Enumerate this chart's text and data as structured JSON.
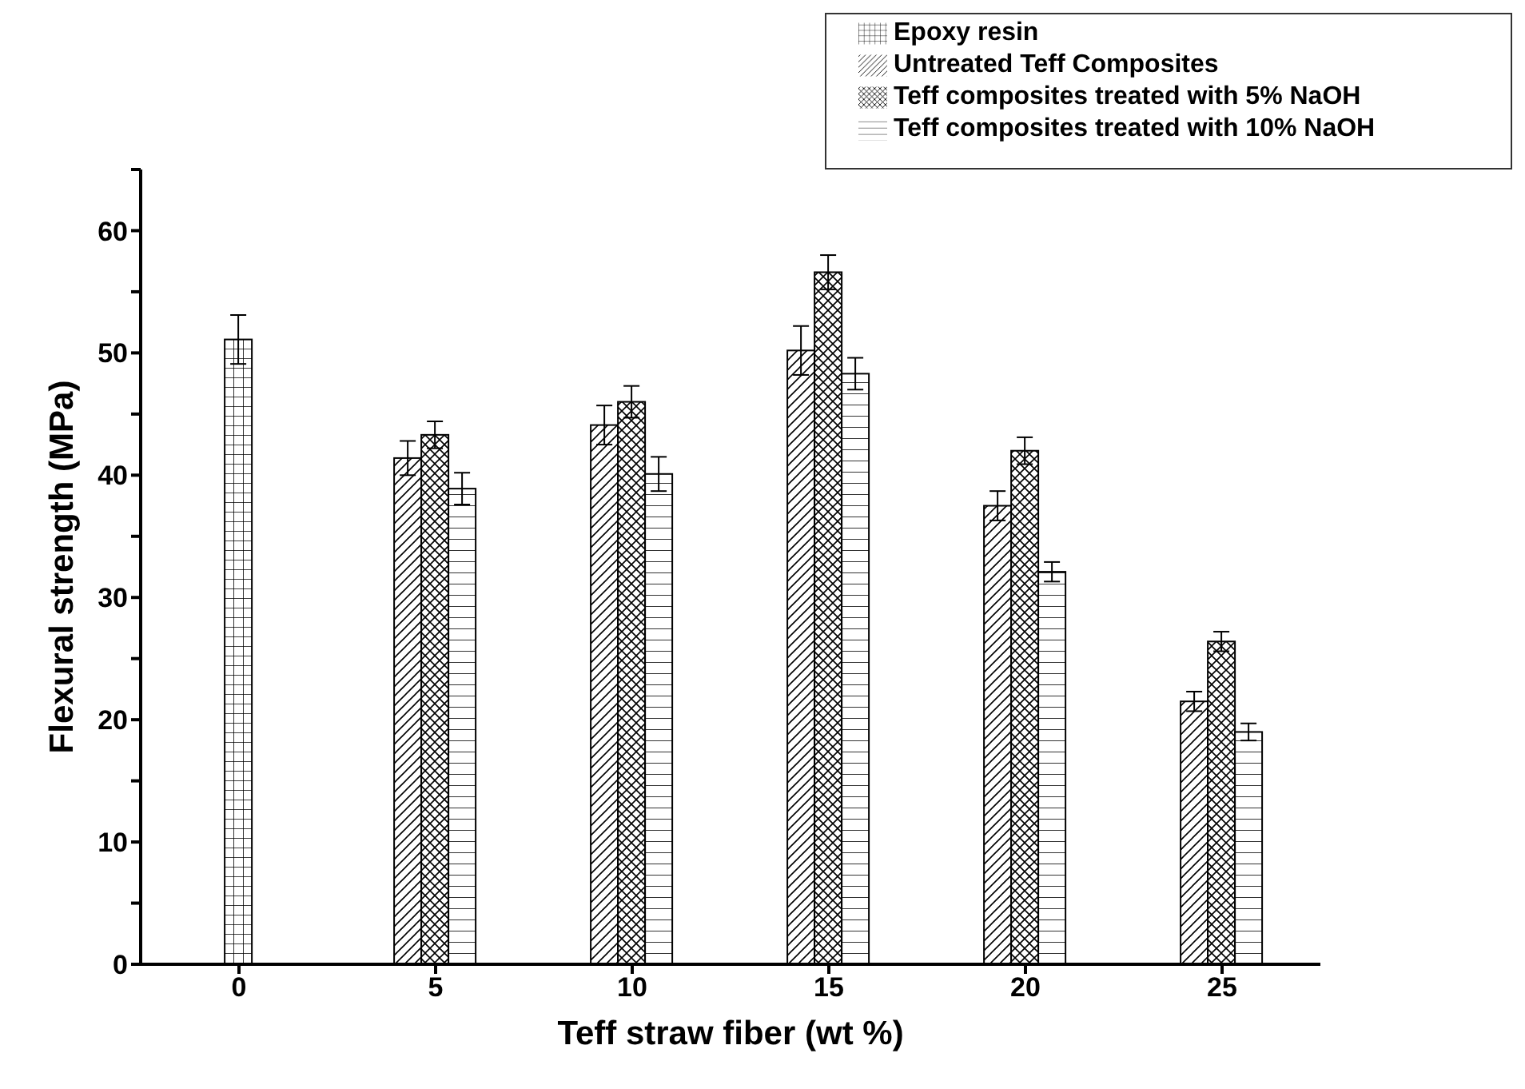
{
  "chart_data": {
    "type": "bar",
    "xlabel": "Teff straw fiber (wt %)",
    "ylabel": "Flexural strength (MPa)",
    "categories": [
      "0",
      "5",
      "10",
      "15",
      "20",
      "25"
    ],
    "series": [
      {
        "name": "Epoxy resin",
        "color": "#000000",
        "values": [
          51.1,
          null,
          null,
          null,
          null,
          null
        ],
        "errors": [
          2.0,
          null,
          null,
          null,
          null,
          null
        ]
      },
      {
        "name": "Untreated Teff  Composites",
        "color": "#000000",
        "values": [
          null,
          41.4,
          44.1,
          50.2,
          37.5,
          21.5
        ],
        "errors": [
          null,
          1.4,
          1.6,
          2.0,
          1.2,
          0.8
        ]
      },
      {
        "name": "Teff composites treated with 5% NaOH",
        "color": "#000000",
        "values": [
          null,
          43.3,
          46.0,
          56.6,
          42.0,
          26.4
        ],
        "errors": [
          null,
          1.1,
          1.3,
          1.4,
          1.1,
          0.8
        ]
      },
      {
        "name": "Teff composites treated with 10% NaOH",
        "color": "#000000",
        "values": [
          null,
          38.9,
          40.1,
          48.3,
          32.1,
          19.0
        ],
        "errors": [
          null,
          1.3,
          1.4,
          1.3,
          0.8,
          0.7
        ]
      }
    ],
    "ylim": [
      0,
      65
    ],
    "yticks": [
      0,
      {
        "value": 5,
        "label": null
      },
      10,
      {
        "value": 15,
        "label": null
      },
      20,
      {
        "value": 25,
        "label": null
      },
      30,
      {
        "value": 35,
        "label": null
      },
      40,
      {
        "value": 45,
        "label": null
      },
      50,
      {
        "value": 55,
        "label": null
      },
      60,
      {
        "value": 65,
        "label": null
      }
    ],
    "grid": false,
    "legend": "top right"
  }
}
